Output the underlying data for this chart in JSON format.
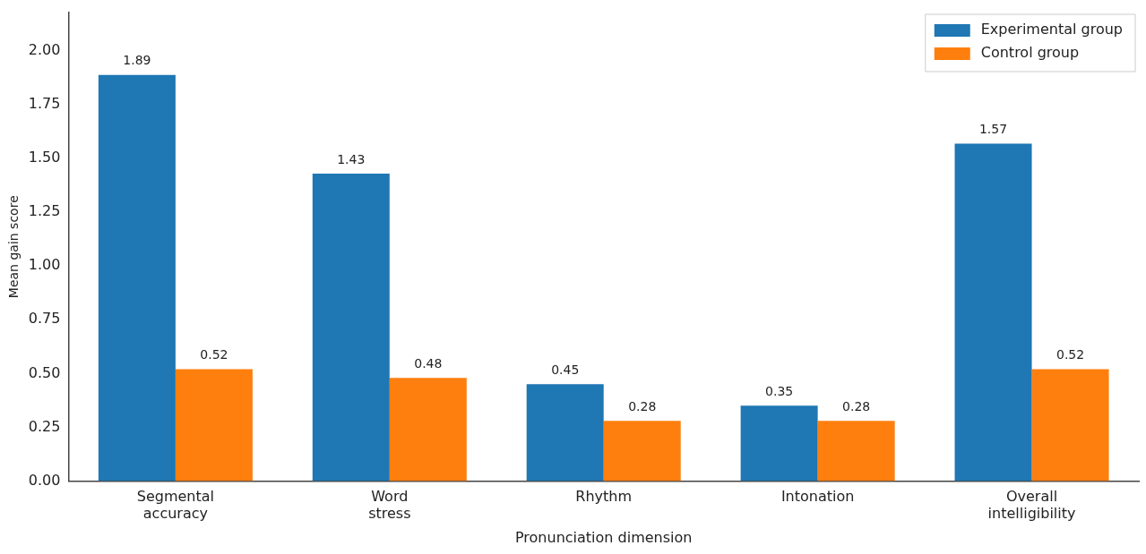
{
  "chart_data": {
    "type": "bar",
    "xlabel": "Pronunciation dimension",
    "ylabel": "Mean gain score",
    "categories": [
      "Segmental\naccuracy",
      "Word\nstress",
      "Rhythm",
      "Intonation",
      "Overall\nintelligibility"
    ],
    "series": [
      {
        "name": "Experimental group",
        "color": "#1f77b4",
        "values": [
          1.89,
          1.43,
          0.45,
          0.35,
          1.57
        ]
      },
      {
        "name": "Control group",
        "color": "#ff7f0e",
        "values": [
          0.52,
          0.48,
          0.28,
          0.28,
          0.52
        ]
      }
    ],
    "ylim": [
      0,
      2.18
    ],
    "yticks": [
      {
        "value": 0,
        "label": "0.00"
      },
      {
        "value": 0.25,
        "label": "0.25"
      },
      {
        "value": 0.5,
        "label": "0.50"
      },
      {
        "value": 0.75,
        "label": "0.75"
      },
      {
        "value": 1,
        "label": "1.00"
      },
      {
        "value": 1.25,
        "label": "1.25"
      },
      {
        "value": 1.5,
        "label": "1.50"
      },
      {
        "value": 1.75,
        "label": "1.75"
      },
      {
        "value": 2,
        "label": "2.00"
      }
    ],
    "grid": false,
    "legend": "top right",
    "data_labels": true
  }
}
